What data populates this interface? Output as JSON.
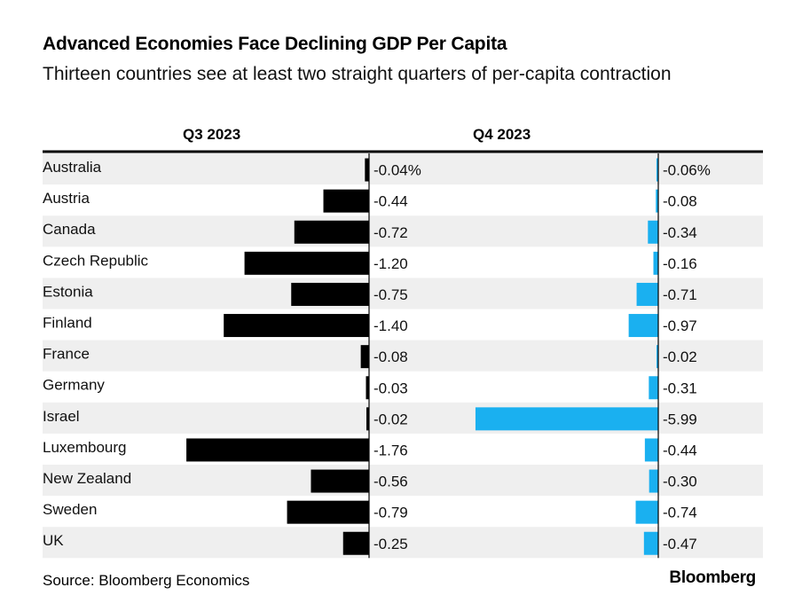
{
  "title": "Advanced Economies Face Declining GDP Per Capita",
  "subtitle": "Thirteen countries see at least two straight quarters of per-capita contraction",
  "source": "Source: Bloomberg Economics",
  "brand": "Bloomberg",
  "colors": {
    "q3_bar": "#000000",
    "q4_bar": "#1ab0f0",
    "row_stripe": "#efefef"
  },
  "chart_data": {
    "type": "bar",
    "orientation": "horizontal",
    "categories": [
      "Australia",
      "Austria",
      "Canada",
      "Czech Republic",
      "Estonia",
      "Finland",
      "France",
      "Germany",
      "Israel",
      "Luxembourg",
      "New Zealand",
      "Sweden",
      "UK"
    ],
    "series": [
      {
        "name": "Q3 2023",
        "values": [
          -0.04,
          -0.44,
          -0.72,
          -1.2,
          -0.75,
          -1.4,
          -0.08,
          -0.03,
          -0.02,
          -1.76,
          -0.56,
          -0.79,
          -0.25
        ],
        "labels": [
          "-0.04%",
          "-0.44",
          "-0.72",
          "-1.20",
          "-0.75",
          "-1.40",
          "-0.08",
          "-0.03",
          "-0.02",
          "-1.76",
          "-0.56",
          "-0.79",
          "-0.25"
        ]
      },
      {
        "name": "Q4 2023",
        "values": [
          -0.06,
          -0.08,
          -0.34,
          -0.16,
          -0.71,
          -0.97,
          -0.02,
          -0.31,
          -5.99,
          -0.44,
          -0.3,
          -0.74,
          -0.47
        ],
        "labels": [
          "-0.06%",
          "-0.08",
          "-0.34",
          "-0.16",
          "-0.71",
          "-0.97",
          "-0.02",
          "-0.31",
          "-5.99",
          "-0.44",
          "-0.30",
          "-0.74",
          "-0.47"
        ]
      }
    ],
    "unit": "%",
    "title": "Advanced Economies Face Declining GDP Per Capita",
    "xlabel": "",
    "ylabel": ""
  }
}
